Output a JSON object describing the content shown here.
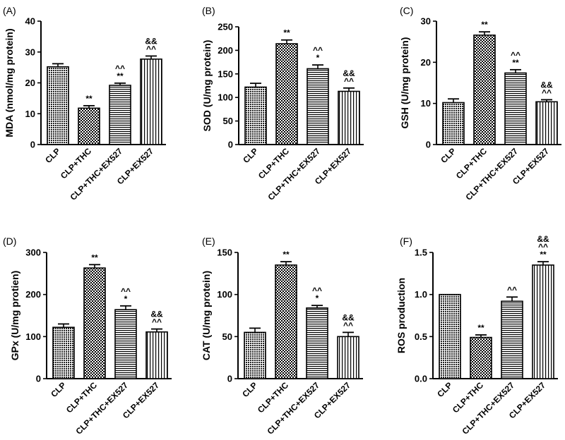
{
  "chart_data": [
    {
      "panel": "(A)",
      "type": "bar",
      "ylabel": "MDA (nmol/mg protein)",
      "categories": [
        "CLP",
        "CLP+THC",
        "CLP+THC+EX527",
        "CLP+EX527"
      ],
      "values": [
        25.2,
        11.8,
        19.2,
        27.7
      ],
      "errors": [
        1.0,
        0.8,
        0.7,
        1.0
      ],
      "ylim": [
        0,
        40
      ],
      "yticks": [
        "0",
        "10",
        "20",
        "30",
        "40"
      ],
      "annotations": [
        [],
        [
          "**"
        ],
        [
          "**",
          "^^"
        ],
        [
          "^^",
          "&&"
        ]
      ]
    },
    {
      "panel": "(B)",
      "type": "bar",
      "ylabel": "SOD (U/mg protein)",
      "categories": [
        "CLP",
        "CLP+THC",
        "CLP+THC+EX527",
        "CLP+EX527"
      ],
      "values": [
        122,
        214,
        161,
        113
      ],
      "errors": [
        8,
        8,
        8,
        7
      ],
      "ylim": [
        0,
        250
      ],
      "yticks": [
        "0",
        "50",
        "100",
        "150",
        "200",
        "250"
      ],
      "annotations": [
        [],
        [
          "**"
        ],
        [
          "*",
          "^^"
        ],
        [
          "^^",
          "&&"
        ]
      ]
    },
    {
      "panel": "(C)",
      "type": "bar",
      "ylabel": "GSH (U/mg protein)",
      "categories": [
        "CLP",
        "CLP+THC",
        "CLP+THC+EX527",
        "CLP+EX527"
      ],
      "values": [
        10.2,
        26.6,
        17.4,
        10.4
      ],
      "errors": [
        0.9,
        0.8,
        0.8,
        0.5
      ],
      "ylim": [
        0,
        30
      ],
      "yticks": [
        "0",
        "10",
        "20",
        "30"
      ],
      "annotations": [
        [],
        [
          "**"
        ],
        [
          "**",
          "^^"
        ],
        [
          "^^",
          "&&"
        ]
      ]
    },
    {
      "panel": "(D)",
      "type": "bar",
      "ylabel": "GPx (U/mg protien)",
      "categories": [
        "CLP",
        "CLP+THC",
        "CLP+THC+EX527",
        "CLP+EX527"
      ],
      "values": [
        122,
        263,
        164,
        111
      ],
      "errors": [
        8,
        8,
        9,
        7
      ],
      "ylim": [
        0,
        300
      ],
      "yticks": [
        "0",
        "100",
        "200",
        "300"
      ],
      "annotations": [
        [],
        [
          "**"
        ],
        [
          "*",
          "^^"
        ],
        [
          "^^",
          "&&"
        ]
      ]
    },
    {
      "panel": "(E)",
      "type": "bar",
      "ylabel": "CAT (U/mg protein)",
      "categories": [
        "CLP",
        "CLP+THC",
        "CLP+THC+EX527",
        "CLP+EX527"
      ],
      "values": [
        55,
        135,
        84,
        50
      ],
      "errors": [
        5,
        4,
        3,
        5
      ],
      "ylim": [
        0,
        150
      ],
      "yticks": [
        "0",
        "50",
        "100",
        "150"
      ],
      "annotations": [
        [],
        [
          "**"
        ],
        [
          "*",
          "^^"
        ],
        [
          "^^",
          "&&"
        ]
      ]
    },
    {
      "panel": "(F)",
      "type": "bar",
      "ylabel": "ROS production",
      "categories": [
        "CLP",
        "CLP+THC",
        "CLP+THC+EX527",
        "CLP+EX527"
      ],
      "values": [
        1.0,
        0.49,
        0.92,
        1.35
      ],
      "errors": [
        0.0,
        0.03,
        0.05,
        0.04
      ],
      "ylim": [
        0,
        1.5
      ],
      "yticks": [
        "0.0",
        "0.5",
        "1.0",
        "1.5"
      ],
      "annotations": [
        [],
        [
          "**"
        ],
        [
          "^^"
        ],
        [
          "**",
          "^^",
          "&&"
        ]
      ]
    }
  ],
  "patterns": [
    "dense-dots",
    "checker",
    "horizontal-lines",
    "vertical-lines"
  ],
  "colors": {
    "ink": "#000000",
    "bar_fill": "#ffffff",
    "background": "#ffffff"
  }
}
